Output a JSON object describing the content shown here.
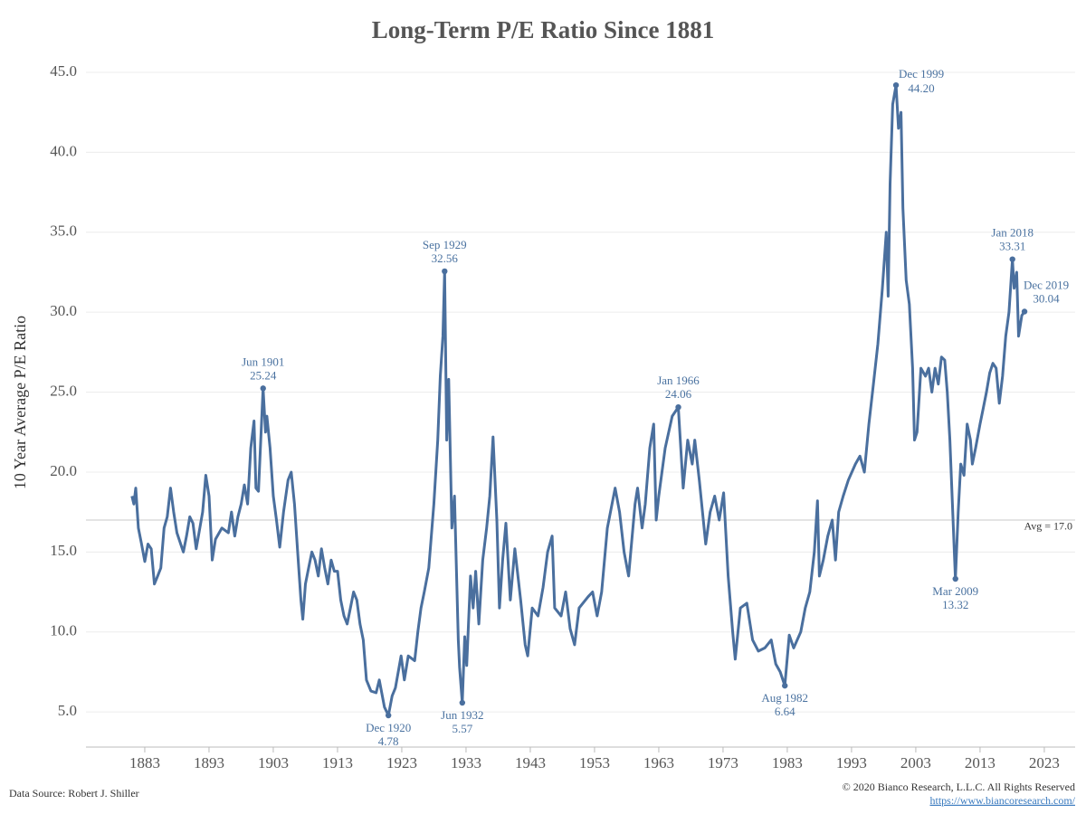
{
  "chart_data": {
    "type": "line",
    "title": "Long-Term P/E Ratio Since 1881",
    "y_label": "10 Year Average P/E Ratio",
    "source": "Data Source: Robert J. Shiller",
    "copyright": "© 2020 Bianco Research, L.L.C. All Rights Reserved",
    "link": "https://www.biancoresearch.com/",
    "grid": true,
    "xlim": [
      1873.85,
      2027.8
    ],
    "ylim": [
      2.8,
      45.85
    ],
    "xticks": [
      1883,
      1893,
      1903,
      1913,
      1923,
      1933,
      1943,
      1953,
      1963,
      1973,
      1983,
      1993,
      2003,
      2013,
      2023
    ],
    "yticks": [
      {
        "value": 5,
        "label": "5.0"
      },
      {
        "value": 10,
        "label": "10.0"
      },
      {
        "value": 15,
        "label": "15.0"
      },
      {
        "value": 20,
        "label": "20.0"
      },
      {
        "value": 25,
        "label": "25.0"
      },
      {
        "value": 30,
        "label": "30.0"
      },
      {
        "value": 35,
        "label": "35.0"
      },
      {
        "value": 40,
        "label": "40.0"
      },
      {
        "value": 45,
        "label": "45.0"
      }
    ],
    "average": 17,
    "average_label": "Avg = 17.0",
    "series": [
      {
        "name": "P/E Ratio",
        "color": "#4a6f9e",
        "x": [
          1881.0,
          1881.3,
          1881.6,
          1882.0,
          1882.5,
          1883.0,
          1883.5,
          1884.0,
          1884.5,
          1885.0,
          1885.5,
          1886.0,
          1886.5,
          1887.0,
          1887.5,
          1888.0,
          1889.0,
          1889.5,
          1890.0,
          1890.5,
          1891.0,
          1892.0,
          1892.5,
          1893.0,
          1893.5,
          1894.0,
          1895.0,
          1896.0,
          1896.5,
          1897.0,
          1897.5,
          1898.0,
          1898.5,
          1899.0,
          1899.5,
          1900.0,
          1900.3,
          1900.7,
          1901.42,
          1901.8,
          1902.0,
          1902.5,
          1903.0,
          1903.5,
          1904.0,
          1904.6,
          1905.3,
          1905.8,
          1906.3,
          1906.8,
          1907.3,
          1907.6,
          1908.0,
          1908.5,
          1909.0,
          1909.5,
          1910.0,
          1910.5,
          1911.0,
          1911.5,
          1912.0,
          1912.5,
          1913.0,
          1913.5,
          1914.0,
          1914.5,
          1915.0,
          1915.5,
          1916.0,
          1916.5,
          1917.0,
          1917.5,
          1918.2,
          1919.0,
          1919.5,
          1920.3,
          1920.92,
          1921.5,
          1922.0,
          1922.9,
          1923.4,
          1924.0,
          1925.0,
          1925.5,
          1926.0,
          1926.5,
          1927.2,
          1928.0,
          1928.6,
          1929.0,
          1929.4,
          1929.67,
          1930.0,
          1930.3,
          1930.8,
          1931.2,
          1931.8,
          1932.0,
          1932.42,
          1932.8,
          1933.1,
          1933.7,
          1934.1,
          1934.5,
          1935.0,
          1935.6,
          1936.2,
          1936.7,
          1937.2,
          1937.8,
          1938.2,
          1938.7,
          1939.2,
          1939.9,
          1940.6,
          1941.5,
          1942.2,
          1942.6,
          1943.3,
          1944.2,
          1945.0,
          1945.7,
          1946.4,
          1946.8,
          1947.8,
          1948.5,
          1949.2,
          1949.9,
          1950.6,
          1952.0,
          1952.7,
          1953.4,
          1954.1,
          1955.0,
          1956.2,
          1956.9,
          1957.6,
          1958.3,
          1959.3,
          1959.7,
          1960.4,
          1960.9,
          1961.6,
          1962.2,
          1962.6,
          1963.0,
          1964.0,
          1965.1,
          1966.04,
          1966.8,
          1967.5,
          1968.2,
          1968.6,
          1969.3,
          1970.3,
          1971.0,
          1971.7,
          1972.4,
          1973.1,
          1973.8,
          1974.5,
          1974.9,
          1975.7,
          1976.7,
          1977.6,
          1978.5,
          1979.5,
          1980.5,
          1981.2,
          1981.9,
          1982.62,
          1983.3,
          1984.0,
          1985.1,
          1985.8,
          1986.5,
          1987.2,
          1987.7,
          1988.0,
          1988.6,
          1989.3,
          1990.0,
          1990.5,
          1991.0,
          1991.7,
          1992.5,
          1993.6,
          1994.3,
          1995.0,
          1995.7,
          1996.4,
          1997.1,
          1997.8,
          1998.4,
          1998.7,
          1999.0,
          1999.4,
          1999.92,
          2000.3,
          2000.7,
          2001.0,
          2001.5,
          2002.0,
          2002.5,
          2002.8,
          2003.2,
          2003.8,
          2004.5,
          2005.0,
          2005.5,
          2006.0,
          2006.5,
          2007.0,
          2007.5,
          2007.9,
          2008.3,
          2008.7,
          2009.0,
          2009.17,
          2009.6,
          2010.0,
          2010.5,
          2011.0,
          2011.5,
          2011.8,
          2012.3,
          2013.0,
          2013.5,
          2014.0,
          2014.5,
          2015.0,
          2015.5,
          2016.0,
          2016.5,
          2017.0,
          2017.5,
          2018.04,
          2018.3,
          2018.7,
          2019.0,
          2019.5,
          2019.92
        ],
        "values": [
          18.5,
          18.0,
          19.0,
          16.5,
          15.5,
          14.4,
          15.5,
          15.2,
          13.0,
          13.5,
          14.0,
          16.5,
          17.2,
          19.0,
          17.5,
          16.2,
          15.0,
          16.0,
          17.2,
          16.8,
          15.2,
          17.5,
          19.8,
          18.5,
          14.5,
          15.8,
          16.5,
          16.2,
          17.5,
          16.0,
          17.2,
          18.0,
          19.2,
          18.0,
          21.5,
          23.2,
          19.0,
          18.8,
          25.24,
          22.5,
          23.5,
          21.5,
          18.5,
          17.0,
          15.3,
          17.5,
          19.5,
          20.0,
          18.0,
          15.0,
          12.0,
          10.8,
          13.0,
          14.0,
          15.0,
          14.5,
          13.5,
          15.2,
          14.0,
          13.0,
          14.5,
          13.8,
          13.8,
          12.0,
          11.0,
          10.5,
          11.5,
          12.5,
          12.0,
          10.5,
          9.5,
          7.0,
          6.3,
          6.2,
          7.0,
          5.3,
          4.78,
          6.0,
          6.5,
          8.5,
          7.0,
          8.5,
          8.2,
          10.0,
          11.5,
          12.5,
          14.0,
          18.0,
          22.0,
          26.0,
          28.5,
          32.56,
          22.0,
          25.8,
          16.5,
          18.5,
          9.5,
          7.8,
          5.57,
          9.7,
          7.9,
          13.5,
          11.5,
          13.8,
          10.5,
          14.5,
          16.5,
          18.5,
          22.2,
          17.0,
          11.5,
          14.5,
          16.8,
          12.0,
          15.2,
          12.0,
          9.2,
          8.5,
          11.5,
          11.0,
          12.8,
          15.0,
          16.0,
          11.5,
          11.0,
          12.5,
          10.2,
          9.2,
          11.5,
          12.2,
          12.5,
          11.0,
          12.5,
          16.5,
          19.0,
          17.5,
          15.0,
          13.5,
          18.0,
          19.0,
          16.5,
          18.0,
          21.5,
          23.0,
          17.0,
          18.5,
          21.5,
          23.5,
          24.06,
          19.0,
          22.0,
          20.5,
          22.0,
          19.5,
          15.5,
          17.5,
          18.5,
          17.0,
          18.7,
          13.5,
          10.0,
          8.3,
          11.5,
          11.8,
          9.5,
          8.8,
          9.0,
          9.5,
          8.0,
          7.5,
          6.64,
          9.8,
          9.0,
          10.0,
          11.5,
          12.5,
          15.0,
          18.2,
          13.5,
          14.5,
          16.0,
          17.0,
          14.5,
          17.5,
          18.5,
          19.5,
          20.5,
          21.0,
          20.0,
          23.0,
          25.5,
          28.0,
          31.5,
          35.0,
          31.0,
          38.0,
          43.0,
          44.2,
          41.5,
          42.5,
          36.5,
          32.0,
          30.5,
          26.5,
          22.0,
          22.5,
          26.5,
          26.0,
          26.5,
          25.0,
          26.5,
          25.5,
          27.2,
          27.0,
          25.0,
          22.0,
          18.0,
          15.0,
          13.32,
          17.5,
          20.5,
          19.8,
          23.0,
          22.0,
          20.5,
          21.5,
          23.0,
          24.0,
          25.0,
          26.2,
          26.8,
          26.5,
          24.3,
          26.0,
          28.5,
          30.0,
          33.31,
          31.5,
          32.5,
          28.5,
          29.8,
          30.04
        ]
      }
    ],
    "annotations": [
      {
        "label": "Jun 1901",
        "x": 1901.42,
        "value": 25.24,
        "placement": "above"
      },
      {
        "label": "Dec 1920",
        "x": 1920.92,
        "value": 4.78,
        "placement": "below"
      },
      {
        "label": "Sep 1929",
        "x": 1929.67,
        "value": 32.56,
        "placement": "above"
      },
      {
        "label": "Jun 1932",
        "x": 1932.42,
        "value": 5.57,
        "placement": "below"
      },
      {
        "label": "Jan 1966",
        "x": 1966.04,
        "value": 24.06,
        "placement": "above"
      },
      {
        "label": "Aug 1982",
        "x": 1982.62,
        "value": 6.64,
        "placement": "below"
      },
      {
        "label": "Dec 1999",
        "x": 1999.92,
        "value": 44.2,
        "value_label": "44.20",
        "placement": "right"
      },
      {
        "label": "Mar 2009",
        "x": 2009.17,
        "value": 13.32,
        "placement": "below"
      },
      {
        "label": "Jan 2018",
        "x": 2018.04,
        "value": 33.31,
        "placement": "above"
      },
      {
        "label": "Dec 2019",
        "x": 2019.92,
        "value": 30.04,
        "placement": "above-right"
      }
    ]
  }
}
